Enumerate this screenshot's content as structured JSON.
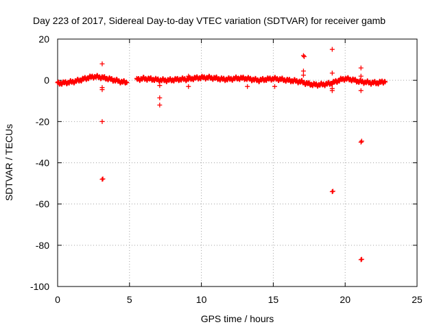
{
  "chart_data": {
    "type": "scatter",
    "title": "Day 223 of 2017, Sidereal Day-to-day VTEC variation (SDTVAR) for receiver gamb",
    "xlabel": "GPS time / hours",
    "ylabel": "SDTVAR / TECUs",
    "xlim": [
      0,
      25
    ],
    "ylim": [
      -100,
      20
    ],
    "xticks": [
      0,
      5,
      10,
      15,
      20,
      25
    ],
    "yticks": [
      20,
      0,
      -20,
      -40,
      -60,
      -80,
      -100
    ],
    "grid": true,
    "legend": "none",
    "marker": "+",
    "color": "#ff0000",
    "trend": [
      [
        0,
        -1.5
      ],
      [
        0.5,
        -1.2
      ],
      [
        1.0,
        -0.8
      ],
      [
        1.5,
        0.0
      ],
      [
        2.0,
        1.0
      ],
      [
        2.5,
        1.8
      ],
      [
        3.0,
        1.5
      ],
      [
        3.5,
        0.8
      ],
      [
        4.0,
        0.0
      ],
      [
        4.5,
        -0.8
      ],
      [
        4.85,
        -1.0
      ],
      [
        5.5,
        0.5
      ],
      [
        6.0,
        0.8
      ],
      [
        6.5,
        0.6
      ],
      [
        7.0,
        0.2
      ],
      [
        7.5,
        0.0
      ],
      [
        8.0,
        0.2
      ],
      [
        8.5,
        0.5
      ],
      [
        9.0,
        0.5
      ],
      [
        9.5,
        1.0
      ],
      [
        10.0,
        1.3
      ],
      [
        10.5,
        1.3
      ],
      [
        11.0,
        1.0
      ],
      [
        11.5,
        0.5
      ],
      [
        12.0,
        0.6
      ],
      [
        12.5,
        1.0
      ],
      [
        13.0,
        1.0
      ],
      [
        13.5,
        0.5
      ],
      [
        14.0,
        0.0
      ],
      [
        14.5,
        0.5
      ],
      [
        15.0,
        0.8
      ],
      [
        15.5,
        0.5
      ],
      [
        16.0,
        0.0
      ],
      [
        16.5,
        -0.3
      ],
      [
        17.0,
        -0.8
      ],
      [
        17.3,
        -1.5
      ],
      [
        17.7,
        -2.0
      ],
      [
        18.0,
        -2.2
      ],
      [
        18.5,
        -2.0
      ],
      [
        19.0,
        -1.5
      ],
      [
        19.4,
        -0.5
      ],
      [
        19.7,
        0.3
      ],
      [
        20.0,
        0.8
      ],
      [
        20.5,
        0.3
      ],
      [
        20.9,
        -0.5
      ],
      [
        21.3,
        -0.8
      ],
      [
        21.8,
        -1.2
      ],
      [
        22.3,
        -1.2
      ],
      [
        22.8,
        -0.5
      ]
    ],
    "outliers": [
      [
        3.1,
        8
      ],
      [
        3.1,
        -3.5
      ],
      [
        3.1,
        -4.5
      ],
      [
        3.1,
        -20
      ],
      [
        3.1,
        -48
      ],
      [
        3.15,
        -47.8
      ],
      [
        7.1,
        -2.5
      ],
      [
        7.1,
        -8.5
      ],
      [
        7.1,
        -12
      ],
      [
        9.1,
        2.0
      ],
      [
        9.1,
        -3
      ],
      [
        13.2,
        -3
      ],
      [
        15.1,
        -3
      ],
      [
        17.1,
        12
      ],
      [
        17.15,
        11.5
      ],
      [
        17.1,
        4.5
      ],
      [
        17.1,
        2.5
      ],
      [
        19.1,
        15
      ],
      [
        19.1,
        3.5
      ],
      [
        19.1,
        -4
      ],
      [
        19.1,
        -5
      ],
      [
        19.1,
        -54
      ],
      [
        19.15,
        -53.8
      ],
      [
        21.1,
        6
      ],
      [
        21.1,
        2
      ],
      [
        21.1,
        -5
      ],
      [
        21.1,
        -30
      ],
      [
        21.15,
        -29.5
      ],
      [
        21.1,
        -87
      ],
      [
        21.15,
        -86.8
      ]
    ]
  }
}
